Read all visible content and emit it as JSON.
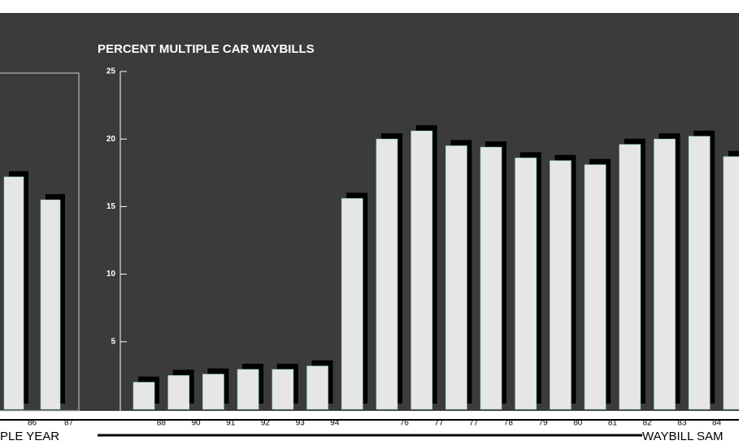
{
  "chart_data": [
    {
      "type": "bar",
      "categories": [
        "86",
        "87"
      ],
      "values": [
        17.2,
        15.5
      ],
      "color": "#e6e6e6",
      "ylim": [
        0,
        25
      ],
      "x_label": "PLE YEAR"
    },
    {
      "type": "bar",
      "title": "PERCENT MULTIPLE CAR WAYBILLS",
      "categories": [
        "88",
        "90",
        "91",
        "92",
        "93",
        "94",
        null,
        "76",
        "77",
        "77",
        "78",
        "79",
        "80",
        "81",
        "82",
        "83",
        "84",
        "8"
      ],
      "values": [
        2.0,
        2.5,
        2.6,
        2.95,
        2.95,
        3.2,
        15.6,
        20.0,
        20.6,
        19.5,
        19.4,
        18.6,
        18.4,
        18.1,
        19.6,
        20.0,
        20.2,
        18.7
      ],
      "color": "#e6e6e6",
      "ylim": [
        0,
        25
      ],
      "yticks": [
        5,
        10,
        15,
        20,
        25
      ],
      "x_label": "WAYBILL SAM"
    }
  ]
}
